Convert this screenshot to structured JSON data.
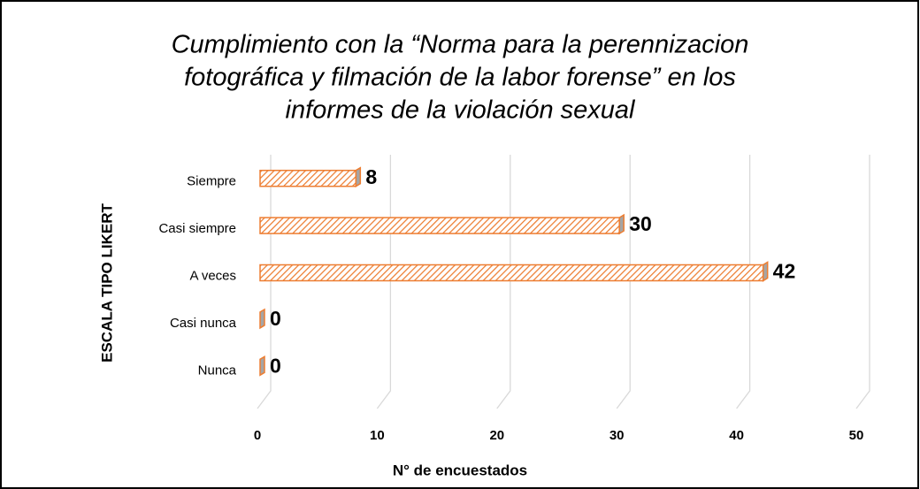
{
  "chart_data": {
    "type": "bar",
    "orientation": "horizontal",
    "title": [
      "Cumplimiento  con la “Norma para la perennizacion",
      "fotográfica y filmación  de la labor forense” en los",
      "informes de la violación  sexual"
    ],
    "categories": [
      "Siempre",
      "Casi siempre",
      "A veces",
      "Casi nunca",
      "Nunca"
    ],
    "values": [
      8,
      30,
      42,
      0,
      0
    ],
    "color": "#ed7d31",
    "xlim": [
      0,
      50
    ],
    "xticks": [
      0,
      10,
      20,
      30,
      40,
      50
    ],
    "xlabel": "N° de encuestados",
    "ylabel": "ESCALA TIPO LIKERT",
    "grid": true
  }
}
